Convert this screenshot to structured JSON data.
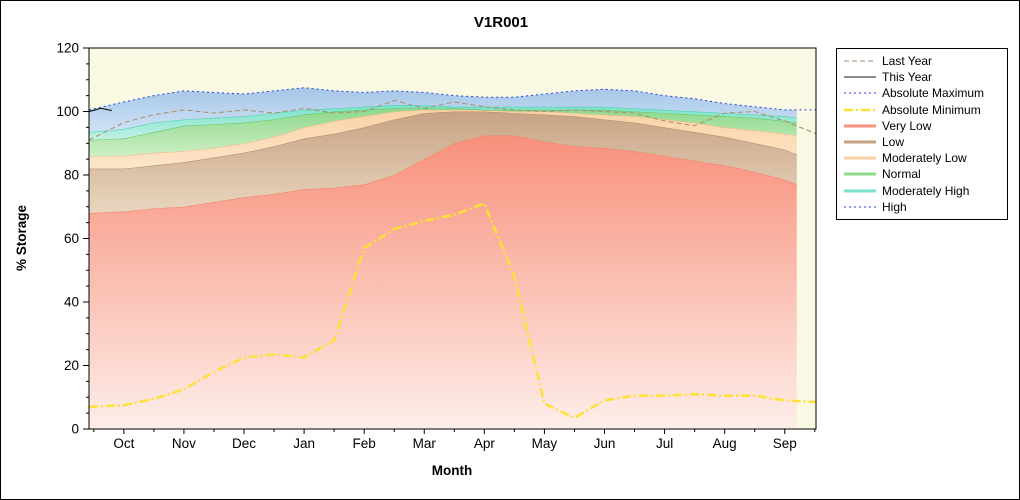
{
  "window": {
    "bg": "#ffffff",
    "border_color": "#000000"
  },
  "chart_data": {
    "type": "area",
    "title": "V1R001",
    "xlabel": "Month",
    "ylabel": "% Storage",
    "ylim": [
      0,
      120
    ],
    "xlim": [
      -0.58,
      11.52
    ],
    "y_major_ticks": [
      0,
      20,
      40,
      60,
      80,
      100,
      120
    ],
    "y_minor_step": 5,
    "plot_bg": "#fafae4",
    "grid": "off",
    "legend_position": "outside-right",
    "months": [
      "Oct",
      "Nov",
      "Dec",
      "Jan",
      "Feb",
      "Mar",
      "Apr",
      "May",
      "Jun",
      "Jul",
      "Aug",
      "Sep"
    ],
    "x_lines": [
      -0.58,
      0,
      0.5,
      1,
      1.5,
      2,
      2.5,
      3,
      3.5,
      4,
      4.5,
      5,
      5.5,
      6,
      6.5,
      7,
      7.5,
      8,
      8.5,
      9,
      9.5,
      10,
      10.5,
      11,
      11.52
    ],
    "x_bands": [
      -0.58,
      0,
      0.5,
      1,
      1.5,
      2,
      2.5,
      3,
      3.5,
      4,
      4.5,
      5,
      5.5,
      6,
      6.5,
      7,
      7.5,
      8,
      8.5,
      9,
      9.5,
      10,
      10.5,
      11,
      11.2
    ],
    "bands": [
      {
        "name": "Very Low",
        "fill_top": "#f8907b",
        "fill_bottom": "#fdeee9",
        "edge": "#f4846e",
        "values": [
          68,
          68.5,
          69.5,
          70,
          71.5,
          73,
          74,
          75.5,
          76,
          77,
          80,
          85,
          90,
          92.5,
          92.5,
          90.5,
          89,
          88.5,
          87.5,
          86,
          84.5,
          83,
          81,
          78.5,
          77
        ]
      },
      {
        "name": "Low",
        "fill_top": "#c7a384",
        "fill_bottom": "#e9d6c0",
        "edge": "#b2906f",
        "values": [
          82,
          82,
          83,
          84,
          85.5,
          87,
          89,
          91.5,
          93,
          95,
          97.5,
          99.5,
          100,
          100,
          99.5,
          99,
          98.5,
          97.5,
          96.5,
          95,
          93.5,
          92,
          90,
          88,
          86.5
        ]
      },
      {
        "name": "Moderately Low",
        "fill_top": "#fbd2a6",
        "fill_bottom": "#fce6cb",
        "edge": "#f0bd8c",
        "values": [
          86,
          86,
          87,
          87.5,
          88.5,
          90,
          92,
          95,
          97,
          98.5,
          100,
          100.5,
          100.5,
          100.5,
          100,
          100,
          99.5,
          99,
          98.5,
          97.5,
          96.5,
          95,
          94,
          93,
          92.5
        ]
      },
      {
        "name": "Normal",
        "fill_top": "#8ed88b",
        "fill_bottom": "#cdefc6",
        "edge": "#67c667",
        "values": [
          91,
          91.5,
          93.5,
          95.5,
          96,
          96.5,
          97.5,
          99,
          100,
          100.5,
          101,
          101,
          101,
          100.5,
          100.5,
          100.5,
          100.5,
          100.5,
          100,
          99.5,
          99,
          98.5,
          98,
          97,
          96.5
        ]
      },
      {
        "name": "Moderately High",
        "fill_top": "#79e2c9",
        "fill_bottom": "#c2f1e5",
        "edge": "#50d0b4",
        "values": [
          93.5,
          94.5,
          96.5,
          97.5,
          98,
          98.5,
          99.5,
          100.5,
          101,
          101.5,
          102,
          102,
          101.5,
          101.5,
          101.5,
          101.5,
          101.5,
          101.5,
          101,
          100.5,
          100,
          99.5,
          99,
          98.5,
          98
        ]
      },
      {
        "name": "High",
        "fill_top": "#a5c6e9",
        "fill_bottom": "#cfe2f4",
        "edge": "none",
        "values": [
          100.5,
          103,
          105,
          106.5,
          106,
          105.5,
          106.5,
          107.5,
          106.5,
          106,
          106.5,
          106,
          105,
          104.5,
          104.5,
          105.5,
          106.5,
          107,
          106.5,
          105,
          104,
          102.5,
          101.5,
          100.5,
          100.5
        ]
      }
    ],
    "lines": [
      {
        "name": "Last Year",
        "color": "#ab8d6d",
        "width": 1,
        "dash": "5 3",
        "values": [
          91,
          96.5,
          99,
          100.5,
          99.5,
          100.5,
          99.5,
          101,
          99.5,
          100,
          103.5,
          101,
          103,
          101.5,
          100.5,
          100,
          100.5,
          100,
          99.5,
          97,
          95.5,
          99.5,
          100,
          97,
          93
        ]
      },
      {
        "name": "Absolute Maximum",
        "color": "#2a3fd4",
        "width": 1,
        "dash": "2 3",
        "values": [
          100.5,
          103,
          105,
          106.5,
          106,
          105.5,
          106.5,
          107.5,
          106.5,
          106,
          106.5,
          106,
          105,
          104.5,
          104.5,
          105.5,
          106.5,
          107,
          106.5,
          105,
          104,
          102.5,
          101.5,
          100.5,
          100.5
        ]
      },
      {
        "name": "This Year",
        "color": "#1a1a1a",
        "width": 1.2,
        "dash": "",
        "x": [
          -0.58,
          -0.38,
          -0.2
        ],
        "values": [
          100,
          101,
          100.3
        ]
      },
      {
        "name": "Absolute Minimum",
        "color": "#ffe135",
        "width": 2.5,
        "dash": "9 3 2 3",
        "values": [
          7,
          7.5,
          9.5,
          12.5,
          18,
          22.5,
          23.5,
          22.5,
          28,
          57,
          63,
          65.5,
          67.5,
          71,
          48,
          8,
          3.5,
          9,
          10.5,
          10.5,
          11,
          10.5,
          10.5,
          9,
          8.5
        ]
      }
    ],
    "legend_items": [
      {
        "label": "Last Year",
        "color": "#ab8d6d",
        "dash": "5 3",
        "width": 1
      },
      {
        "label": "This Year",
        "color": "#1a1a1a",
        "dash": "",
        "width": 1
      },
      {
        "label": "Absolute Maximum",
        "color": "#2a3fd4",
        "dash": "2 3",
        "width": 1
      },
      {
        "label": "Absolute Minimum",
        "color": "#ffe135",
        "dash": "9 3 2 3",
        "width": 2.5
      },
      {
        "label": "Very Low",
        "color": "#f8907b",
        "dash": "",
        "width": 3
      },
      {
        "label": "Low",
        "color": "#c7a384",
        "dash": "",
        "width": 3
      },
      {
        "label": "Moderately Low",
        "color": "#fbd2a6",
        "dash": "",
        "width": 3
      },
      {
        "label": "Normal",
        "color": "#8ed88b",
        "dash": "",
        "width": 3
      },
      {
        "label": "Moderately High",
        "color": "#79e2c9",
        "dash": "",
        "width": 3
      },
      {
        "label": "High",
        "color": "#2a3fd4",
        "dash": "2 3",
        "width": 1
      }
    ]
  }
}
